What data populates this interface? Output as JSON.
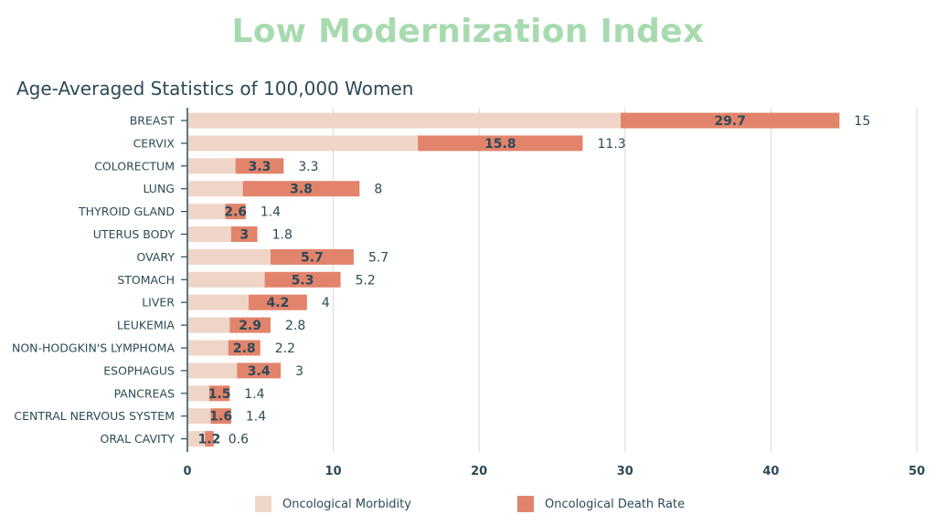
{
  "header": {
    "title": "Low Modernization Index",
    "subtitle": "Age-Averaged Statistics of 100,000 Women"
  },
  "colors": {
    "morbidity": "#efd5c7",
    "death": "#e2836b",
    "grid": "#d9d9d9",
    "axis": "#2c4a57",
    "title": "#a8dab0"
  },
  "chart_data": {
    "type": "bar",
    "orientation": "horizontal",
    "stacked": true,
    "categories": [
      "BREAST",
      "CERVIX",
      "COLORECTUM",
      "LUNG",
      "THYROID GLAND",
      "UTERUS BODY",
      "OVARY",
      "STOMACH",
      "LIVER",
      "LEUKEMIA",
      "NON-HODGKIN'S LYMPHOMA",
      "ESOPHAGUS",
      "PANCREAS",
      "CENTRAL NERVOUS SYSTEM",
      "ORAL CAVITY"
    ],
    "series": [
      {
        "name": "Oncological Morbidity",
        "values": [
          29.7,
          15.8,
          3.3,
          3.8,
          2.6,
          3,
          5.7,
          5.3,
          4.2,
          2.9,
          2.8,
          3.4,
          1.5,
          1.6,
          1.2
        ],
        "labels": [
          "29.7",
          "15.8",
          "3.3",
          "3.8",
          "2.6",
          "3",
          "5.7",
          "5.3",
          "4.2",
          "2.9",
          "2.8",
          "3.4",
          "1.5",
          "1.6",
          "1.2"
        ]
      },
      {
        "name": "Oncological Death Rate",
        "values": [
          15,
          11.3,
          3.3,
          8,
          1.4,
          1.8,
          5.7,
          5.2,
          4,
          2.8,
          2.2,
          3,
          1.4,
          1.4,
          0.6
        ],
        "labels": [
          "15",
          "11.3",
          "3.3",
          "8",
          "1.4",
          "1.8",
          "5.7",
          "5.2",
          "4",
          "2.8",
          "2.2",
          "3",
          "1.4",
          "1.4",
          "0.6"
        ]
      }
    ],
    "xlim": [
      0,
      50
    ],
    "xticks": [
      "0",
      "10",
      "20",
      "30",
      "40",
      "50"
    ],
    "grid": true,
    "legend_position": "bottom"
  }
}
